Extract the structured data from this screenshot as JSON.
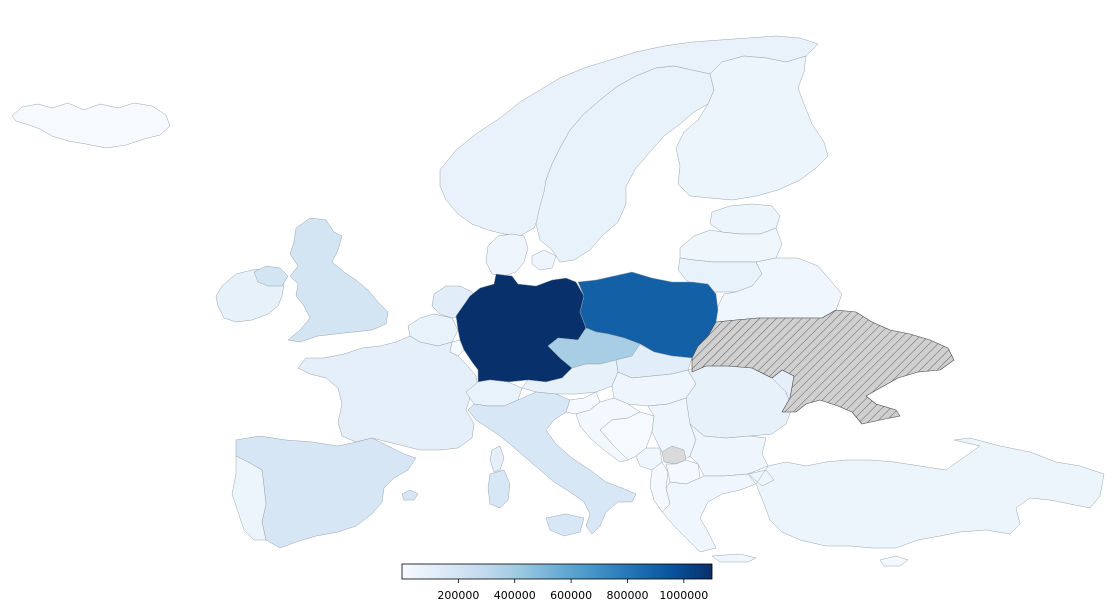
{
  "map": {
    "colormap": "Blues",
    "value_min": 0,
    "value_max": 1100000,
    "missing_color": "#dadada",
    "hatched_color": "#d0d0d0",
    "countries": [
      {
        "name": "Iceland",
        "value": 5000
      },
      {
        "name": "Ireland",
        "value": 90000
      },
      {
        "name": "United Kingdom",
        "value": 200000
      },
      {
        "name": "Norway",
        "value": 75000
      },
      {
        "name": "Sweden",
        "value": 80000
      },
      {
        "name": "Finland",
        "value": 60000
      },
      {
        "name": "Denmark",
        "value": 50000
      },
      {
        "name": "Estonia",
        "value": 55000
      },
      {
        "name": "Latvia",
        "value": 45000
      },
      {
        "name": "Lithuania",
        "value": 80000
      },
      {
        "name": "Belarus",
        "value": 40000
      },
      {
        "name": "Netherlands",
        "value": 120000
      },
      {
        "name": "Belgium",
        "value": 80000
      },
      {
        "name": "Luxembourg",
        "value": 10000
      },
      {
        "name": "France",
        "value": 100000
      },
      {
        "name": "Spain",
        "value": 180000
      },
      {
        "name": "Portugal",
        "value": 60000
      },
      {
        "name": "Germany",
        "value": 1100000
      },
      {
        "name": "Poland",
        "value": 900000
      },
      {
        "name": "Czechia",
        "value": 380000
      },
      {
        "name": "Switzerland",
        "value": 80000
      },
      {
        "name": "Austria",
        "value": 90000
      },
      {
        "name": "Slovakia",
        "value": 120000
      },
      {
        "name": "Hungary",
        "value": 50000
      },
      {
        "name": "Romania",
        "value": 90000
      },
      {
        "name": "Moldova",
        "value": 100000
      },
      {
        "name": "Italy",
        "value": 170000
      },
      {
        "name": "Slovenia",
        "value": 20000
      },
      {
        "name": "Croatia",
        "value": 25000
      },
      {
        "name": "Bosnia and Herzegovina",
        "value": 10000
      },
      {
        "name": "Serbia",
        "value": 50000
      },
      {
        "name": "Montenegro",
        "value": 40000
      },
      {
        "name": "Albania",
        "value": 20000
      },
      {
        "name": "North Macedonia",
        "value": 20000
      },
      {
        "name": "Bulgaria",
        "value": 50000
      },
      {
        "name": "Greece",
        "value": 40000
      },
      {
        "name": "Turkey",
        "value": 55000
      },
      {
        "name": "Cyprus",
        "value": 20000
      },
      {
        "name": "Kosovo",
        "value": null
      },
      {
        "name": "Ukraine",
        "value": null
      }
    ]
  },
  "colorbar": {
    "ticks": [
      200000,
      400000,
      600000,
      800000,
      1000000
    ],
    "tick_labels": [
      "200000",
      "400000",
      "600000",
      "800000",
      "1000000"
    ]
  }
}
